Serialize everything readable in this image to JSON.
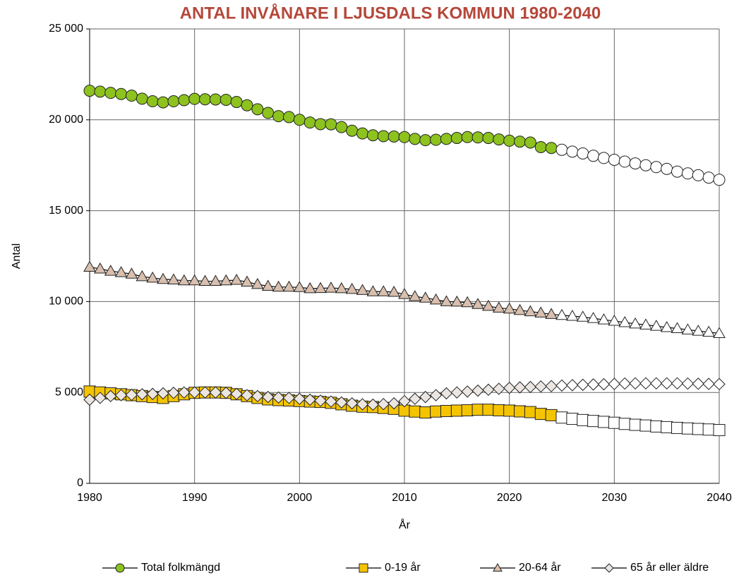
{
  "chart_data": {
    "type": "line",
    "title": "ANTAL INVÅNARE I LJUSDALS KOMMUN 1980-2040",
    "title_color": "#b5473a",
    "x_label": "År",
    "y_label": "Antal",
    "x": [
      1980,
      1981,
      1982,
      1983,
      1984,
      1985,
      1986,
      1987,
      1988,
      1989,
      1990,
      1991,
      1992,
      1993,
      1994,
      1995,
      1996,
      1997,
      1998,
      1999,
      2000,
      2001,
      2002,
      2003,
      2004,
      2005,
      2006,
      2007,
      2008,
      2009,
      2010,
      2011,
      2012,
      2013,
      2014,
      2015,
      2016,
      2017,
      2018,
      2019,
      2020,
      2021,
      2022,
      2023,
      2024,
      2025,
      2026,
      2027,
      2028,
      2029,
      2030,
      2031,
      2032,
      2033,
      2034,
      2035,
      2036,
      2037,
      2038,
      2039,
      2040
    ],
    "projection_start": 2025,
    "projection_color": "#ffffff",
    "xlim": [
      1980,
      2040
    ],
    "xticks": [
      1980,
      1990,
      2000,
      2010,
      2020,
      2030,
      2040
    ],
    "ylim": [
      0,
      25000
    ],
    "yticks": [
      0,
      {
        "value": 5000,
        "label": "5 000"
      },
      {
        "value": 10000,
        "label": "10 000"
      },
      {
        "value": 15000,
        "label": "15 000"
      },
      {
        "value": 20000,
        "label": "20 000"
      },
      {
        "value": 25000,
        "label": "25 000"
      }
    ],
    "grid": true,
    "legend": "bottom",
    "series": [
      {
        "name": "Total folkmängd",
        "color": "#8dc21f",
        "marker": "circle",
        "values": [
          21600,
          21550,
          21480,
          21420,
          21330,
          21160,
          21020,
          20960,
          21020,
          21080,
          21150,
          21130,
          21120,
          21100,
          20980,
          20800,
          20580,
          20380,
          20200,
          20150,
          20000,
          19850,
          19760,
          19750,
          19600,
          19400,
          19250,
          19150,
          19100,
          19080,
          19050,
          18950,
          18880,
          18900,
          18950,
          19000,
          19050,
          19030,
          19000,
          18920,
          18850,
          18800,
          18750,
          18500,
          18450,
          18350,
          18250,
          18150,
          18020,
          17900,
          17800,
          17700,
          17600,
          17500,
          17400,
          17300,
          17150,
          17050,
          16950,
          16820,
          16700
        ]
      },
      {
        "name": "0-19 år",
        "color": "#f5c400",
        "marker": "square",
        "values": [
          5050,
          5000,
          4950,
          4900,
          4850,
          4800,
          4750,
          4700,
          4800,
          4900,
          4980,
          5000,
          5000,
          4980,
          4900,
          4800,
          4700,
          4620,
          4580,
          4560,
          4530,
          4500,
          4480,
          4430,
          4350,
          4270,
          4220,
          4200,
          4150,
          4100,
          4000,
          3950,
          3900,
          3950,
          3980,
          4000,
          4020,
          4050,
          4050,
          4020,
          4000,
          3960,
          3920,
          3820,
          3750,
          3620,
          3550,
          3480,
          3430,
          3380,
          3330,
          3270,
          3220,
          3180,
          3130,
          3090,
          3050,
          3020,
          2990,
          2960,
          2930
        ]
      },
      {
        "name": "20-64 år",
        "color": "#d9bfae",
        "marker": "triangle",
        "values": [
          11900,
          11800,
          11680,
          11600,
          11520,
          11380,
          11300,
          11230,
          11200,
          11150,
          11150,
          11120,
          11120,
          11150,
          11180,
          11080,
          10950,
          10850,
          10800,
          10800,
          10780,
          10720,
          10730,
          10750,
          10720,
          10680,
          10620,
          10550,
          10550,
          10520,
          10400,
          10280,
          10200,
          10100,
          10000,
          9980,
          9950,
          9850,
          9750,
          9650,
          9600,
          9520,
          9450,
          9380,
          9300,
          9250,
          9200,
          9150,
          9080,
          9000,
          8930,
          8850,
          8780,
          8720,
          8650,
          8580,
          8520,
          8450,
          8380,
          8320,
          8250
        ]
      },
      {
        "name": "65 år eller äldre",
        "color": "#ebe6e1",
        "marker": "diamond",
        "values": [
          4600,
          4700,
          4800,
          4850,
          4870,
          4900,
          4920,
          4950,
          4980,
          5000,
          5000,
          5000,
          5000,
          4980,
          4920,
          4850,
          4800,
          4750,
          4720,
          4700,
          4650,
          4600,
          4550,
          4500,
          4450,
          4400,
          4350,
          4330,
          4360,
          4400,
          4520,
          4650,
          4750,
          4850,
          4950,
          5000,
          5050,
          5100,
          5150,
          5200,
          5250,
          5280,
          5300,
          5330,
          5350,
          5380,
          5400,
          5420,
          5440,
          5450,
          5470,
          5490,
          5500,
          5500,
          5500,
          5500,
          5500,
          5490,
          5480,
          5470,
          5460
        ]
      }
    ]
  }
}
